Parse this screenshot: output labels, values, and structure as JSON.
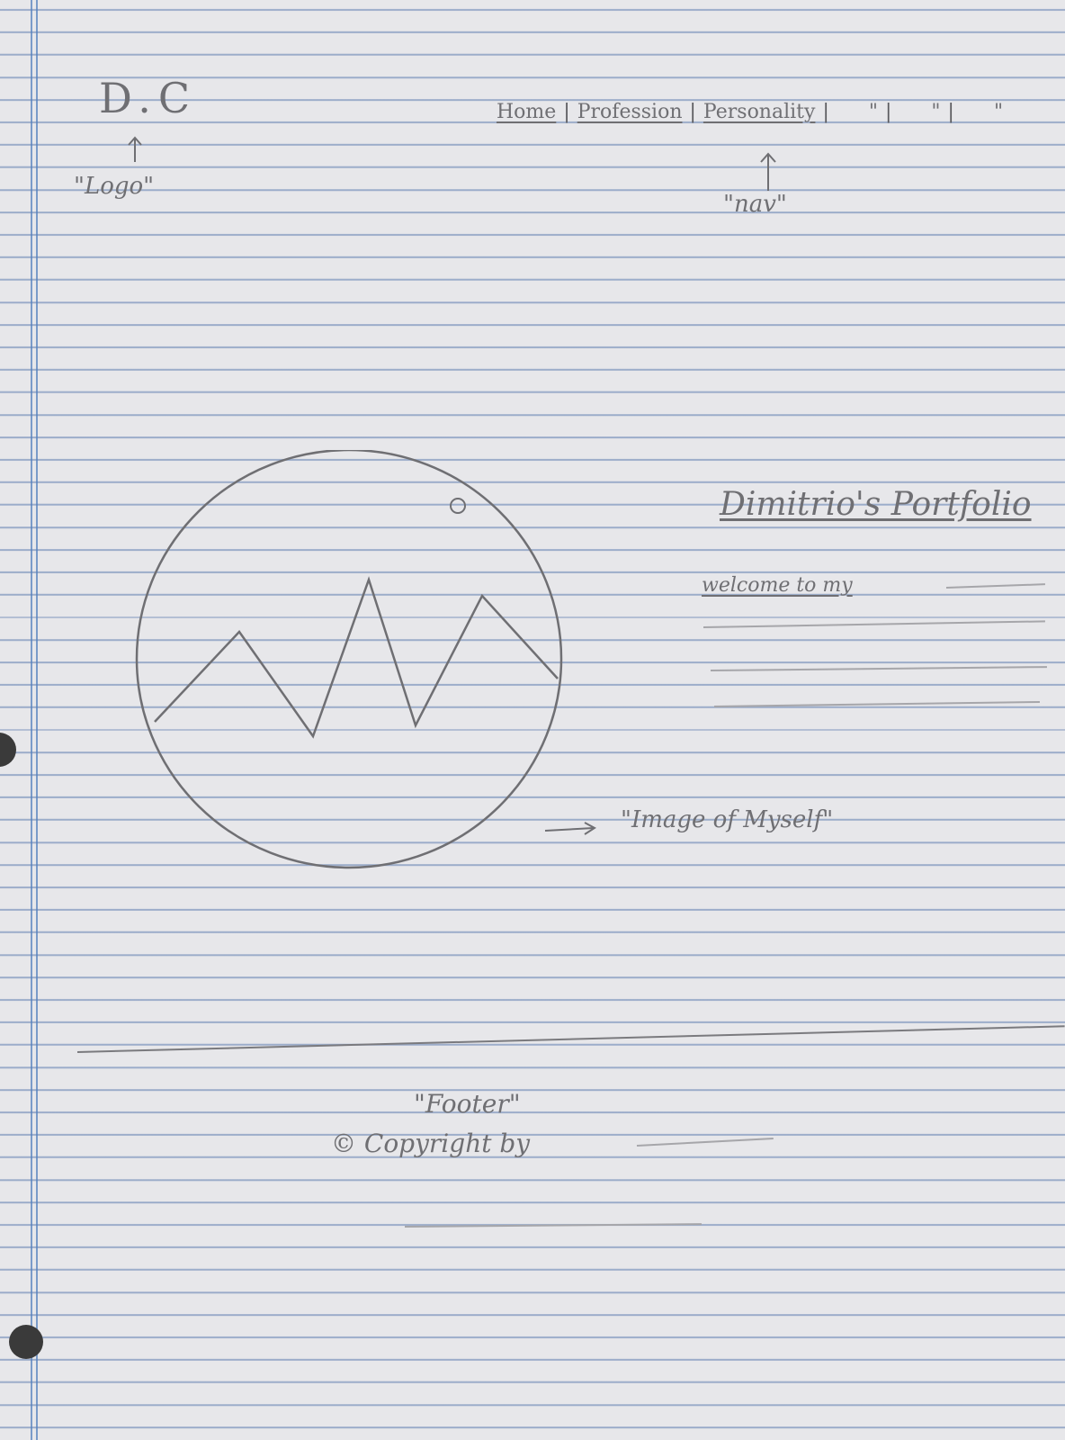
{
  "header": {
    "logo_text": "D.C",
    "logo_annotation": "\"Logo\"",
    "nav_items": [
      "Home",
      "Profession",
      "Personality",
      "\"",
      "\"",
      "\""
    ],
    "nav_annotation": "\"nav\""
  },
  "hero": {
    "title": "Dimitrio's Portfolio",
    "intro": "welcome to my",
    "image_annotation": "\"Image of Myself\""
  },
  "footer": {
    "annotation": "\"Footer\"",
    "copyright": "© Copyright by"
  },
  "colors": {
    "paper": "#e7e7ea",
    "rule_lines": "#5f7daf",
    "pencil": "#6f6f73"
  }
}
